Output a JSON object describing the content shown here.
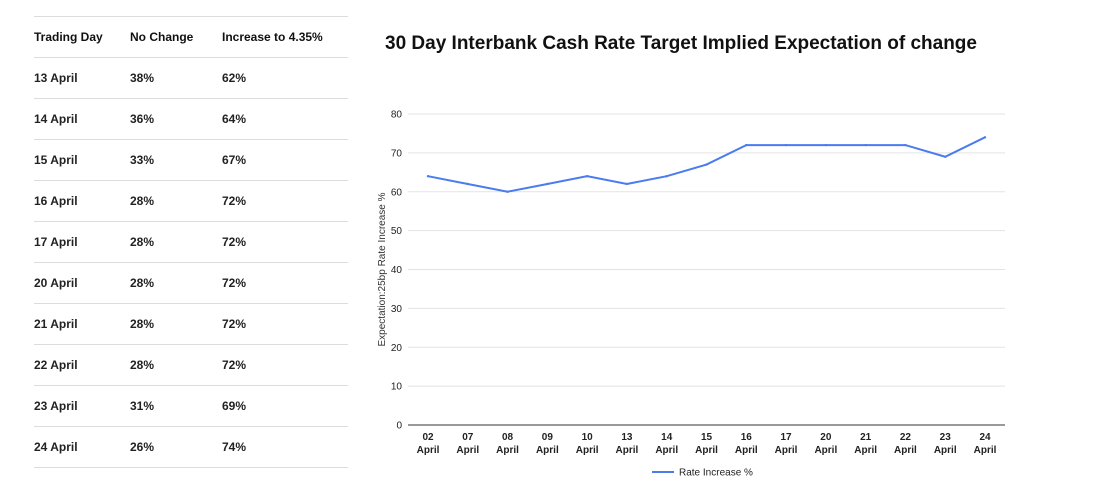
{
  "table": {
    "headers": [
      "Trading Day",
      "No Change",
      "Increase to 4.35%"
    ],
    "rows": [
      [
        "13 April",
        "38%",
        "62%"
      ],
      [
        "14 April",
        "36%",
        "64%"
      ],
      [
        "15 April",
        "33%",
        "67%"
      ],
      [
        "16 April",
        "28%",
        "72%"
      ],
      [
        "17 April",
        "28%",
        "72%"
      ],
      [
        "20 April",
        "28%",
        "72%"
      ],
      [
        "21 April",
        "28%",
        "72%"
      ],
      [
        "22 April",
        "28%",
        "72%"
      ],
      [
        "23 April",
        "31%",
        "69%"
      ],
      [
        "24 April",
        "26%",
        "74%"
      ]
    ]
  },
  "chart_data": {
    "type": "line",
    "title": "30 Day Interbank Cash Rate Target Implied Expectation of change",
    "xlabel": "",
    "ylabel": "Expectation:25bp Rate Increase %",
    "ylim": [
      0,
      80
    ],
    "yticks": [
      0,
      10,
      20,
      30,
      40,
      50,
      60,
      70,
      80
    ],
    "categories": [
      [
        "02",
        "April"
      ],
      [
        "07",
        "April"
      ],
      [
        "08",
        "April"
      ],
      [
        "09",
        "April"
      ],
      [
        "10",
        "April"
      ],
      [
        "13",
        "April"
      ],
      [
        "14",
        "April"
      ],
      [
        "15",
        "April"
      ],
      [
        "16",
        "April"
      ],
      [
        "17",
        "April"
      ],
      [
        "20",
        "April"
      ],
      [
        "21",
        "April"
      ],
      [
        "22",
        "April"
      ],
      [
        "23",
        "April"
      ],
      [
        "24",
        "April"
      ]
    ],
    "series": [
      {
        "name": "Rate Increase %",
        "color": "#4a7cf0",
        "values": [
          64,
          62,
          60,
          62,
          64,
          62,
          64,
          67,
          72,
          72,
          72,
          72,
          72,
          69,
          74
        ]
      }
    ],
    "legend": "bottom-center"
  }
}
